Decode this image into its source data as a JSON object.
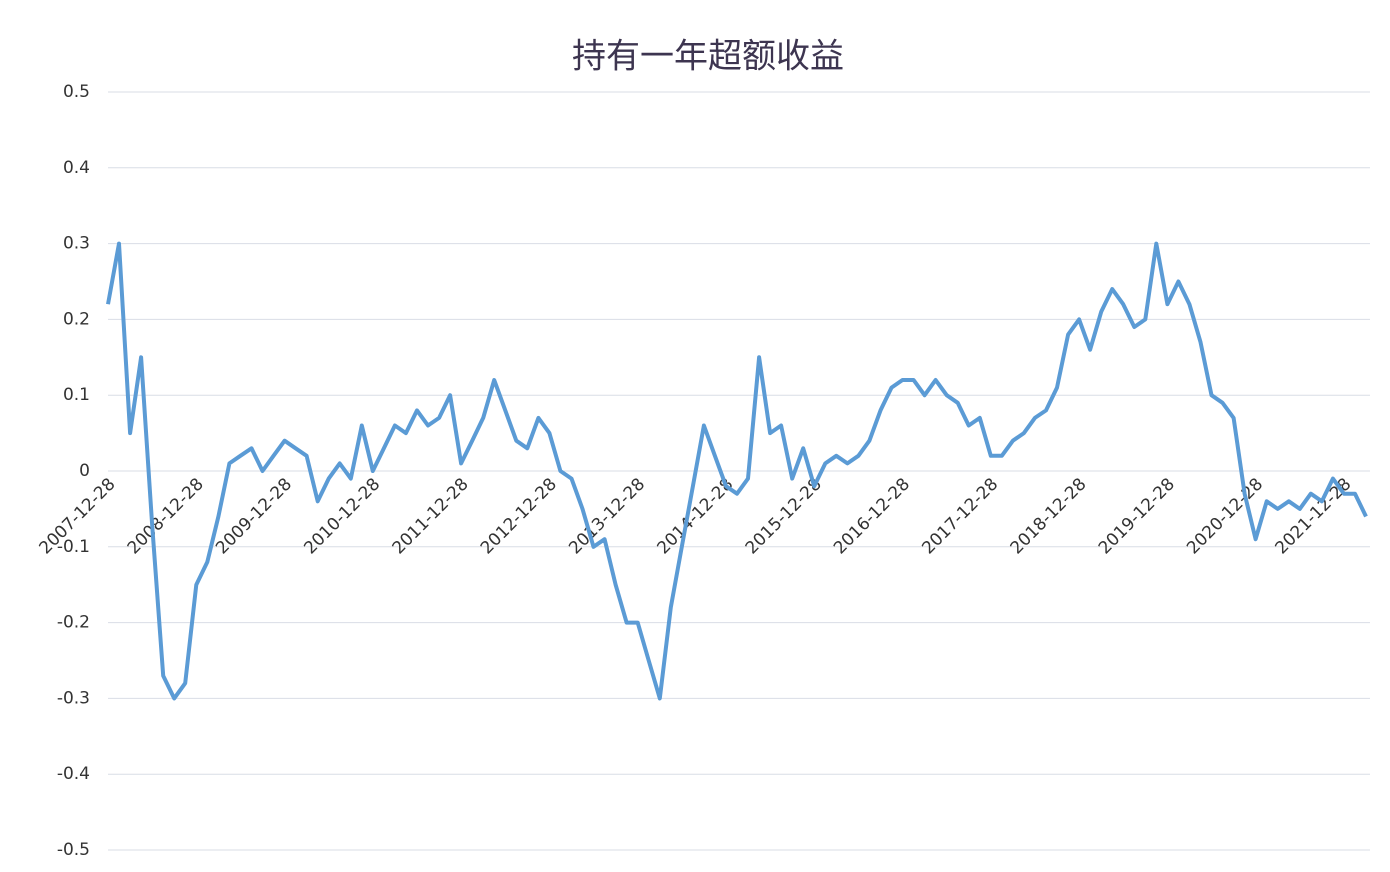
{
  "chart_data": {
    "type": "line",
    "title": "持有一年超额收益",
    "categories": [
      "2007-12-28",
      null,
      null,
      null,
      null,
      null,
      null,
      null,
      "2008-12-28",
      null,
      null,
      null,
      null,
      null,
      null,
      null,
      "2009-12-28",
      null,
      null,
      null,
      null,
      null,
      null,
      null,
      "2010-12-28",
      null,
      null,
      null,
      null,
      null,
      null,
      null,
      "2011-12-28",
      null,
      null,
      null,
      null,
      null,
      null,
      null,
      "2012-12-28",
      null,
      null,
      null,
      null,
      null,
      null,
      null,
      "2013-12-28",
      null,
      null,
      null,
      null,
      null,
      null,
      null,
      "2014-12-28",
      null,
      null,
      null,
      null,
      null,
      null,
      null,
      "2015-12-28",
      null,
      null,
      null,
      null,
      null,
      null,
      null,
      "2016-12-28",
      null,
      null,
      null,
      null,
      null,
      null,
      null,
      "2017-12-28",
      null,
      null,
      null,
      null,
      null,
      null,
      null,
      "2018-12-28",
      null,
      null,
      null,
      null,
      null,
      null,
      null,
      "2019-12-28",
      null,
      null,
      null,
      null,
      null,
      null,
      null,
      "2020-12-28",
      null,
      null,
      null,
      null,
      null,
      null,
      null,
      "2021-12-28",
      null,
      null
    ],
    "series": [
      {
        "color": "#5b9bd5",
        "values": [
          0.22,
          0.3,
          0.05,
          0.15,
          -0.07,
          -0.27,
          -0.3,
          -0.28,
          -0.15,
          -0.12,
          -0.06,
          0.01,
          0.02,
          0.03,
          0.0,
          0.02,
          0.04,
          0.03,
          0.02,
          -0.04,
          -0.01,
          0.01,
          -0.01,
          0.06,
          0.0,
          0.03,
          0.06,
          0.05,
          0.08,
          0.06,
          0.07,
          0.1,
          0.01,
          0.04,
          0.07,
          0.12,
          0.08,
          0.04,
          0.03,
          0.07,
          0.05,
          0.0,
          -0.01,
          -0.05,
          -0.1,
          -0.09,
          -0.15,
          -0.2,
          -0.2,
          -0.25,
          -0.3,
          -0.18,
          -0.1,
          -0.02,
          0.06,
          0.02,
          -0.02,
          -0.03,
          -0.01,
          0.15,
          0.05,
          0.06,
          -0.01,
          0.03,
          -0.02,
          0.01,
          0.02,
          0.01,
          0.02,
          0.04,
          0.08,
          0.11,
          0.12,
          0.12,
          0.1,
          0.12,
          0.1,
          0.09,
          0.06,
          0.07,
          0.02,
          0.02,
          0.04,
          0.05,
          0.07,
          0.08,
          0.11,
          0.18,
          0.2,
          0.16,
          0.21,
          0.24,
          0.22,
          0.19,
          0.2,
          0.3,
          0.22,
          0.25,
          0.22,
          0.17,
          0.1,
          0.09,
          0.07,
          -0.03,
          -0.09,
          -0.04,
          -0.05,
          -0.04,
          -0.05,
          -0.03,
          -0.04,
          -0.01,
          -0.03,
          -0.03,
          -0.06
        ]
      }
    ],
    "ylim": [
      -0.5,
      0.5
    ],
    "yticks": [
      -0.5,
      -0.4,
      -0.3,
      -0.2,
      -0.1,
      0,
      0.1,
      0.2,
      0.3,
      0.4,
      0.5
    ],
    "grid": true
  }
}
